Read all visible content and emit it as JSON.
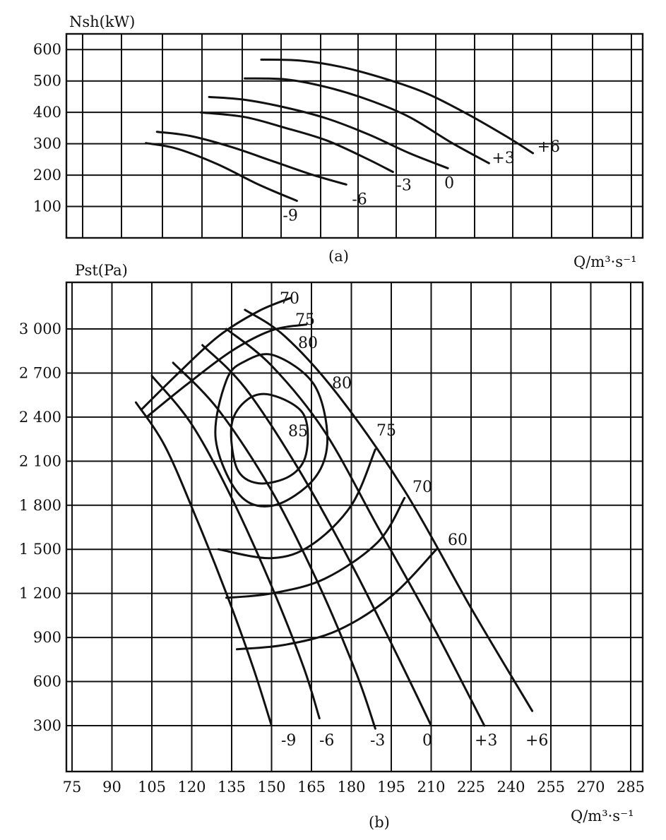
{
  "chart_data": [
    {
      "id": "a",
      "type": "line",
      "panel_label": "(a)",
      "ylabel": "Nsh(kW)",
      "xlabel": "Q/m³·s⁻¹",
      "x_tick_labels": [],
      "xlim": [
        75,
        285
      ],
      "ylim": [
        0,
        650
      ],
      "y_ticks": [
        100,
        200,
        300,
        400,
        500,
        600
      ],
      "y_tick_labels": [
        "100",
        "200",
        "300",
        "400",
        "500",
        "600"
      ],
      "grid": true,
      "series": [
        {
          "name": "-9",
          "x": [
            104,
            115,
            130,
            145,
            159
          ],
          "y": [
            302,
            285,
            235,
            170,
            118
          ]
        },
        {
          "name": "-6",
          "x": [
            108,
            120,
            135,
            150,
            165,
            177
          ],
          "y": [
            338,
            325,
            290,
            245,
            200,
            170
          ]
        },
        {
          "name": "-3",
          "x": [
            124,
            140,
            155,
            170,
            185,
            194
          ],
          "y": [
            400,
            385,
            350,
            310,
            250,
            210
          ]
        },
        {
          "name": "0",
          "x": [
            127,
            140,
            155,
            170,
            185,
            200,
            214
          ],
          "y": [
            449,
            440,
            415,
            380,
            330,
            270,
            222
          ]
        },
        {
          "name": "+3",
          "x": [
            140,
            155,
            170,
            185,
            200,
            215,
            229
          ],
          "y": [
            508,
            505,
            480,
            440,
            385,
            305,
            238
          ]
        },
        {
          "name": "+6",
          "x": [
            146,
            160,
            175,
            190,
            205,
            220,
            235,
            245
          ],
          "y": [
            568,
            565,
            545,
            510,
            465,
            400,
            325,
            270
          ]
        }
      ]
    },
    {
      "id": "b",
      "type": "line",
      "panel_label": "(b)",
      "ylabel": "Pst(Pa)",
      "xlabel": "Q/m³·s⁻¹",
      "xlim": [
        70,
        290
      ],
      "ylim": [
        0,
        3300
      ],
      "x_ticks": [
        75,
        90,
        105,
        120,
        135,
        150,
        165,
        180,
        195,
        210,
        225,
        240,
        255,
        270,
        285
      ],
      "x_tick_labels": [
        "75",
        "90",
        "105",
        "120",
        "135",
        "150",
        "165",
        "180",
        "195",
        "210",
        "225",
        "240",
        "255",
        "270",
        "285"
      ],
      "y_ticks": [
        300,
        600,
        900,
        1200,
        1500,
        1800,
        2100,
        2400,
        2700,
        3000
      ],
      "y_tick_labels": [
        "300",
        "600",
        "900",
        "1 200",
        "1 500",
        "1 800",
        "2 100",
        "2 400",
        "2 700",
        "3 000"
      ],
      "grid": true,
      "series": [
        {
          "name": "-9",
          "group": "blade angle",
          "x": [
            99,
            110,
            122,
            133,
            143,
            150
          ],
          "y": [
            2500,
            2200,
            1700,
            1200,
            700,
            300
          ]
        },
        {
          "name": "-6",
          "x": [
            105,
            120,
            135,
            150,
            162,
            168
          ],
          "y": [
            2680,
            2350,
            1850,
            1250,
            700,
            350
          ]
        },
        {
          "name": "-3",
          "x": [
            113,
            130,
            150,
            168,
            182,
            189
          ],
          "y": [
            2770,
            2450,
            1900,
            1250,
            650,
            280
          ]
        },
        {
          "name": "0",
          "x": [
            124,
            140,
            160,
            180,
            198,
            210
          ],
          "y": [
            2890,
            2600,
            2050,
            1400,
            750,
            300
          ]
        },
        {
          "name": "+3",
          "x": [
            133,
            150,
            170,
            190,
            210,
            230
          ],
          "y": [
            3000,
            2750,
            2300,
            1650,
            1000,
            300
          ]
        },
        {
          "name": "+6",
          "x": [
            140,
            155,
            175,
            200,
            225,
            248
          ],
          "y": [
            3130,
            2950,
            2550,
            1900,
            1100,
            400
          ]
        },
        {
          "name": "70",
          "x": [
            101,
            115,
            130,
            145,
            157
          ],
          "y": [
            2450,
            2700,
            2950,
            3120,
            3210
          ]
        },
        {
          "name": "75",
          "x": [
            103,
            118,
            135,
            150,
            163
          ],
          "y": [
            2400,
            2620,
            2850,
            2990,
            3030
          ]
        },
        {
          "name": "80",
          "closed": true,
          "x": [
            151,
            166,
            171,
            166,
            151,
            138,
            129,
            133,
            140,
            151
          ],
          "y": [
            2820,
            2620,
            2250,
            1980,
            1800,
            1870,
            2250,
            2650,
            2780,
            2820
          ]
        },
        {
          "name": "85",
          "closed": true,
          "x": [
            150,
            162,
            163,
            157,
            145,
            137,
            135,
            141,
            150
          ],
          "y": [
            2550,
            2420,
            2150,
            2000,
            1950,
            2050,
            2350,
            2520,
            2550
          ]
        },
        {
          "name": "75",
          "x": [
            130,
            150,
            165,
            180,
            189
          ],
          "y": [
            1500,
            1440,
            1530,
            1800,
            2180
          ]
        },
        {
          "name": "70",
          "x": [
            133,
            150,
            170,
            190,
            200
          ],
          "y": [
            1170,
            1200,
            1300,
            1550,
            1850
          ]
        },
        {
          "name": "60",
          "x": [
            137,
            155,
            175,
            195,
            212
          ],
          "y": [
            820,
            850,
            950,
            1180,
            1500
          ]
        }
      ],
      "curve_labels": {
        "blade_angles": [
          "-9",
          "-6",
          "-3",
          "0",
          "+3",
          "+6"
        ],
        "efficiency": [
          "70",
          "75",
          "80",
          "80",
          "85",
          "75",
          "70",
          "60"
        ]
      }
    }
  ],
  "panel_a_curve_labels": [
    "-9",
    "-6",
    "-3",
    "0",
    "+3",
    "+6"
  ]
}
